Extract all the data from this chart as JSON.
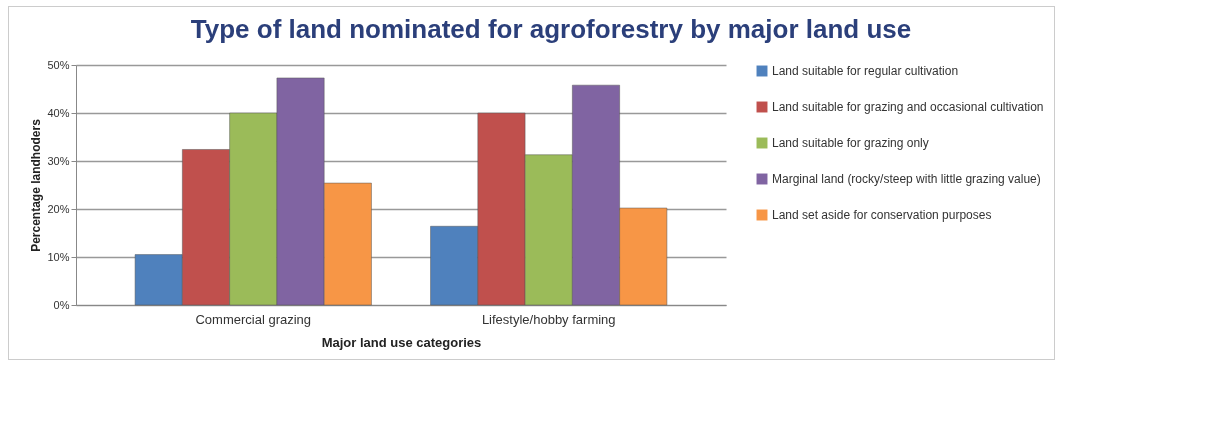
{
  "chart_data": {
    "type": "bar",
    "title": "Type of land nominated for agroforestry by major land use",
    "xlabel": "Major land use categories",
    "ylabel": "Percentage landhoders",
    "categories": [
      "Commercial grazing",
      "Lifestyle/hobby farming"
    ],
    "series": [
      {
        "name": "Land suitable for regular cultivation",
        "color": "#4f81bd",
        "values": [
          10.5,
          16.4
        ]
      },
      {
        "name": "Land suitable for grazing and occasional cultivation",
        "color": "#c0504d",
        "values": [
          32.4,
          40
        ]
      },
      {
        "name": "Land suitable for grazing only",
        "color": "#9bbb59",
        "values": [
          40,
          31.3
        ]
      },
      {
        "name": "Marginal land (rocky/steep with little grazing value)",
        "color": "#8064a2",
        "values": [
          47.3,
          45.8
        ]
      },
      {
        "name": "Land set aside for conservation purposes",
        "color": "#f79646",
        "values": [
          25.4,
          20.2
        ]
      }
    ],
    "ylim": [
      0,
      50
    ],
    "yticks": [
      {
        "value": 0,
        "label": "0%"
      },
      {
        "value": 10,
        "label": "10%"
      },
      {
        "value": 20,
        "label": "20%"
      },
      {
        "value": 30,
        "label": "30%"
      },
      {
        "value": 40,
        "label": "40%"
      },
      {
        "value": 50,
        "label": "50%"
      }
    ],
    "grid": "y",
    "legend": "right"
  }
}
